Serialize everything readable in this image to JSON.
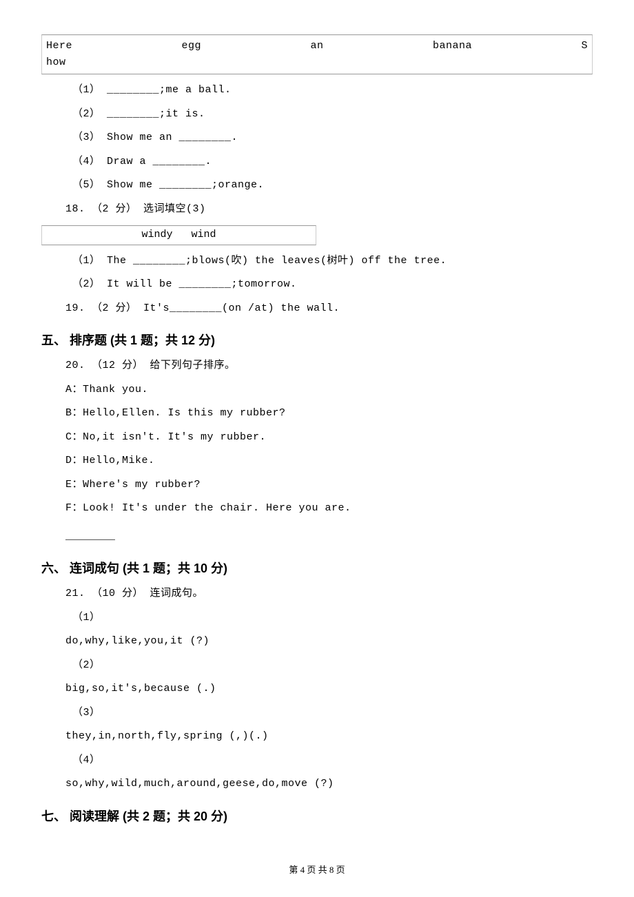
{
  "wordbox_top": {
    "line1": [
      "Here",
      "egg",
      "an",
      "banana",
      "S"
    ],
    "line2": "how"
  },
  "q17_subs": [
    "（1） ________;me a ball.",
    "（2） ________;it is.",
    "（3） Show me an ________.",
    "（4） Draw a ________.",
    "（5） Show me ________;orange."
  ],
  "q18_header": "18. （2 分） 选词填空(3)",
  "wordbox_small": "windy    wind",
  "q18_subs": [
    "（1） The ________;blows(吹) the leaves(树叶) off the tree.",
    "（2） It will be ________;tomorrow."
  ],
  "q19": "19. （2 分） It's________(on /at) the wall.",
  "section5_heading": "五、 排序题 (共 1 题；共 12 分)",
  "q20_header": "20. （12 分） 给下列句子排序。",
  "q20_options": [
    "A：Thank you.",
    "B：Hello,Ellen. Is this my rubber?",
    "C：No,it isn't. It's my rubber.",
    "D：Hello,Mike.",
    "E：Where's my rubber?",
    "F：Look! It's under the chair. Here you are."
  ],
  "q20_blank": "________",
  "section6_heading": "六、 连词成句 (共 1 题；共 10 分)",
  "q21_header": "21. （10 分） 连词成句。",
  "q21_subs": [
    {
      "n": "（1）",
      "text": "do,why,like,you,it (?)"
    },
    {
      "n": "（2）",
      "text": "big,so,it's,because (.)"
    },
    {
      "n": "（3）",
      "text": "they,in,north,fly,spring (,)(.)"
    },
    {
      "n": "（4）",
      "text": "so,why,wild,much,around,geese,do,move (?)"
    }
  ],
  "section7_heading": "七、 阅读理解 (共 2 题；共 20 分)",
  "footer": "第 4 页 共 8 页"
}
